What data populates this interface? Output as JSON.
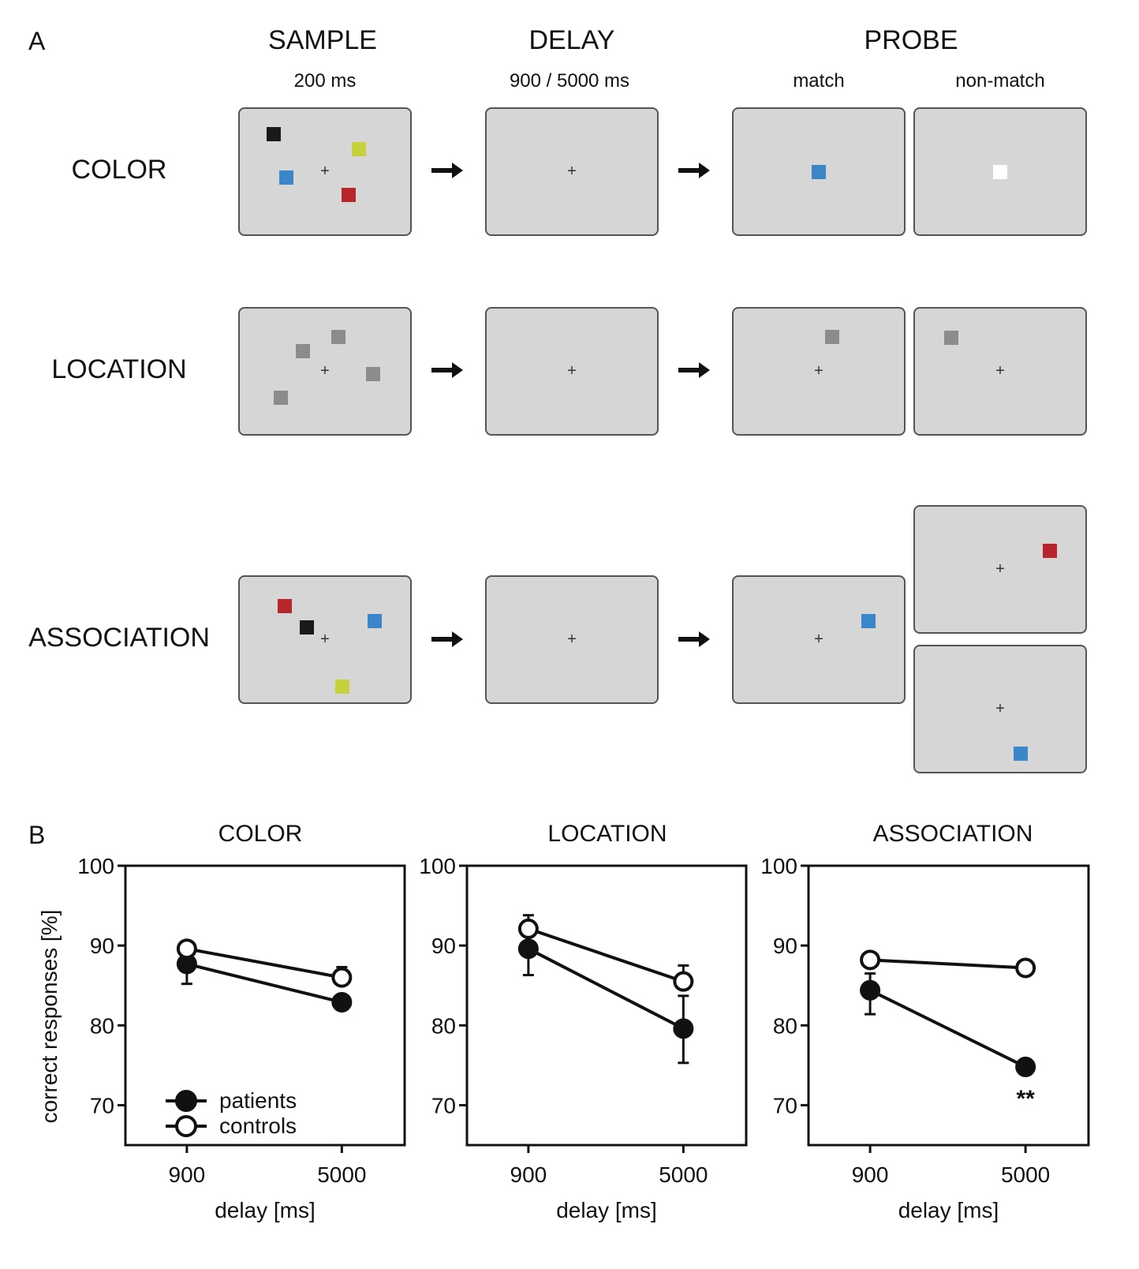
{
  "panel_a": {
    "letter": "A",
    "stages": {
      "sample": {
        "title": "SAMPLE",
        "subtitle": "200 ms"
      },
      "delay": {
        "title": "DELAY",
        "subtitle": "900 / 5000 ms"
      },
      "probe": {
        "title": "PROBE",
        "match": "match",
        "nonmatch": "non-match"
      }
    },
    "rows": {
      "color": "COLOR",
      "location": "LOCATION",
      "association": "ASSOCIATION"
    },
    "fixation": "+",
    "colors": {
      "screen": "#d6d6d6",
      "black": "#1a1a1a",
      "yellow_green": "#c6d13c",
      "blue": "#3a86c8",
      "red": "#b8262b",
      "gray": "#8c8c8c",
      "white": "#ffffff"
    }
  },
  "panel_b": {
    "letter": "B",
    "ylabel": "correct responses [%]",
    "xlabel": "delay [ms]",
    "legend": {
      "patients": "patients",
      "controls": "controls"
    },
    "significance": "**"
  },
  "chart_data": [
    {
      "type": "line",
      "title": "COLOR",
      "xlabel": "delay [ms]",
      "ylabel": "correct responses [%]",
      "categories": [
        "900",
        "5000"
      ],
      "ylim": [
        65,
        100
      ],
      "yticks": [
        "70",
        "80",
        "90",
        "100"
      ],
      "legend_placement": "bottom-left",
      "series": [
        {
          "name": "patients",
          "values": [
            87.7,
            82.9
          ],
          "error_low": [
            85.2,
            82.9
          ],
          "error_high": [
            87.7,
            82.9
          ],
          "marker": "filled"
        },
        {
          "name": "controls",
          "values": [
            89.6,
            86.0
          ],
          "error_low": [
            89.6,
            86.0
          ],
          "error_high": [
            89.6,
            87.3
          ],
          "marker": "open"
        }
      ]
    },
    {
      "type": "line",
      "title": "LOCATION",
      "xlabel": "delay [ms]",
      "categories": [
        "900",
        "5000"
      ],
      "ylim": [
        65,
        100
      ],
      "yticks": [
        "70",
        "80",
        "90",
        "100"
      ],
      "series": [
        {
          "name": "patients",
          "values": [
            89.6,
            79.6
          ],
          "error_low": [
            86.3,
            75.3
          ],
          "error_high": [
            89.6,
            83.7
          ],
          "marker": "filled"
        },
        {
          "name": "controls",
          "values": [
            92.1,
            85.5
          ],
          "error_low": [
            92.1,
            85.5
          ],
          "error_high": [
            93.8,
            87.5
          ],
          "marker": "open"
        }
      ]
    },
    {
      "type": "line",
      "title": "ASSOCIATION",
      "xlabel": "delay [ms]",
      "categories": [
        "900",
        "5000"
      ],
      "ylim": [
        65,
        100
      ],
      "yticks": [
        "70",
        "80",
        "90",
        "100"
      ],
      "annotation": "**",
      "series": [
        {
          "name": "patients",
          "values": [
            84.4,
            74.8
          ],
          "error_low": [
            81.4,
            74.8
          ],
          "error_high": [
            86.5,
            74.8
          ],
          "marker": "filled"
        },
        {
          "name": "controls",
          "values": [
            88.2,
            87.2
          ],
          "error_low": [
            88.2,
            87.2
          ],
          "error_high": [
            88.2,
            87.2
          ],
          "marker": "open"
        }
      ]
    }
  ]
}
